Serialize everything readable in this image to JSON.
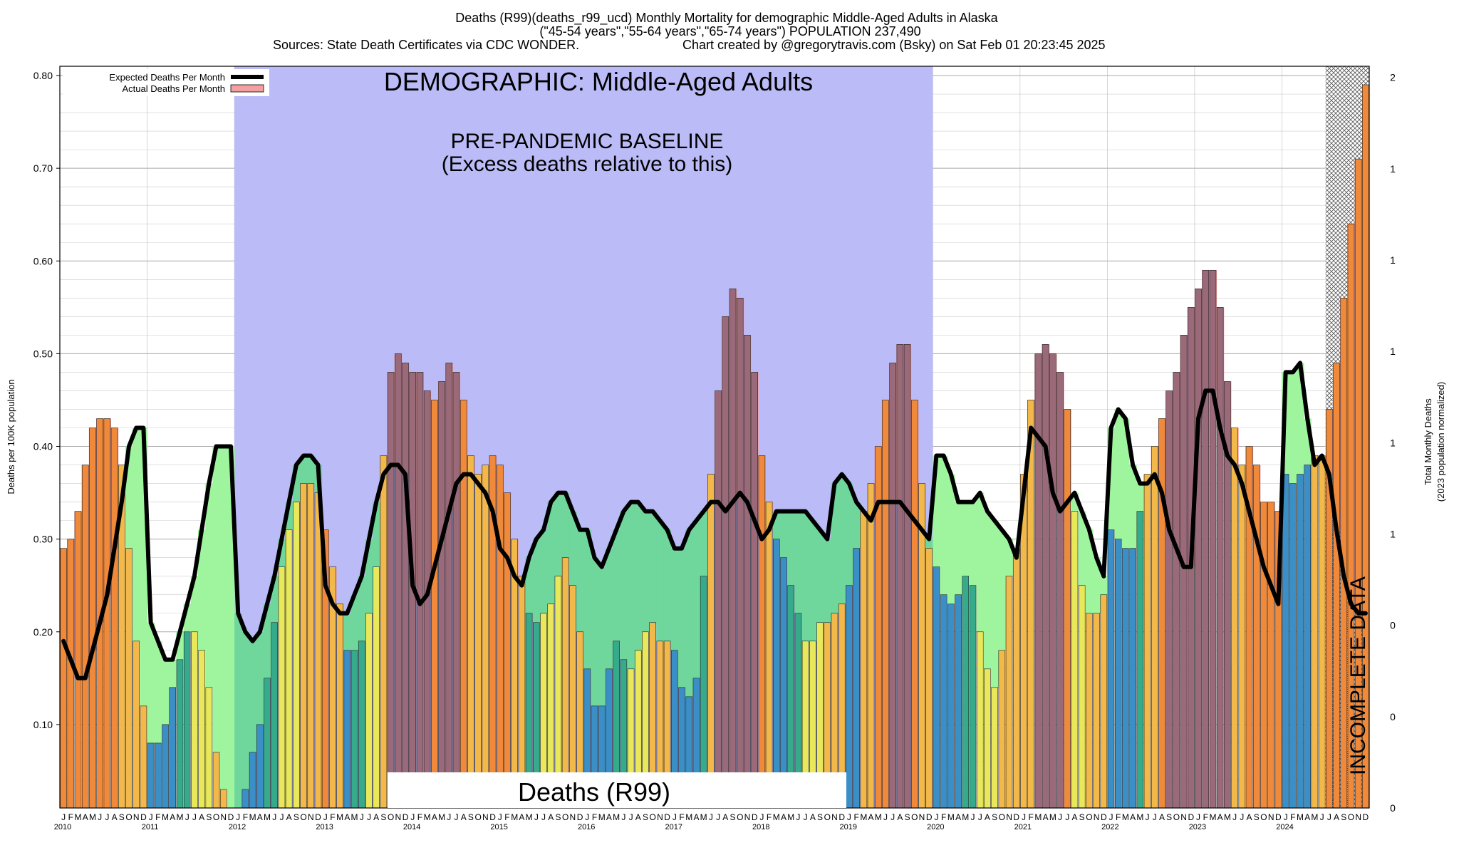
{
  "header": {
    "title_line1": "Deaths (R99)(deaths_r99_ucd) Monthly Mortality for demographic Middle-Aged Adults in Alaska",
    "title_line2": "(\"45-54 years\",\"55-64 years\",\"65-74 years\") POPULATION 237,490",
    "title_line3_left": "Sources: State Death Certificates via CDC WONDER.",
    "title_line3_right": "Chart created by @gregorytravis.com (Bsky) on Sat Feb 01 20:23:45 2025"
  },
  "annotations": {
    "demographic": "DEMOGRAPHIC: Middle-Aged Adults",
    "baseline_1": "PRE-PANDEMIC BASELINE",
    "baseline_2": "(Excess deaths relative to this)",
    "cause_box": "Deaths (R99)",
    "incomplete": "INCOMPLETE DATA"
  },
  "colors": {
    "baseline_shade": "#bbbbf7",
    "expected_line": "#000000",
    "actual_fill": "#f4a0a0",
    "below_expected": "#9ef59e",
    "below_expected_in_baseline": "#6fd69c",
    "above_expected": "#f4a0a0",
    "bar_palette": [
      "#3a8fc7",
      "#3d9ac0",
      "#3aa3a3",
      "#36ab8c",
      "#e8e85a",
      "#f0d060",
      "#f2b84a",
      "#f0a040",
      "#f08a3a",
      "#e87030",
      "#9a6a7a",
      "#7a6a6a"
    ]
  },
  "legend": {
    "expected": "Expected Deaths Per Month",
    "actual": "Actual Deaths Per Month"
  },
  "chart_data": {
    "type": "bar",
    "ylabel_left": "Deaths per 100K population",
    "ylabel_right_1": "Total Monthly Deaths",
    "ylabel_right_2": "(2023 population normalized)",
    "ylim": [
      0.01,
      0.81
    ],
    "y_ticks": [
      0.1,
      0.2,
      0.3,
      0.4,
      0.5,
      0.6,
      0.7,
      0.8
    ],
    "y_tick_labels": [
      "0.10",
      "0.20",
      "0.30",
      "0.40",
      "0.50",
      "0.60",
      "0.70",
      "0.80"
    ],
    "right_tick_labels": [
      "0",
      "0",
      "0",
      "1",
      "1",
      "1",
      "1",
      "1",
      "2"
    ],
    "grid": "horizontal",
    "legend_position": "top-left",
    "month_labels": [
      "J",
      "F",
      "M",
      "A",
      "M",
      "J",
      "J",
      "A",
      "S",
      "O",
      "N",
      "D"
    ],
    "years": [
      "2010",
      "2011",
      "2012",
      "2013",
      "2014",
      "2015",
      "2016",
      "2017",
      "2018",
      "2019",
      "2020",
      "2021",
      "2022",
      "2023",
      "2024"
    ],
    "baseline_period": {
      "start": "2012-01",
      "end": "2019-12"
    },
    "incomplete_period": {
      "start": "2024-07",
      "end": "2024-12"
    },
    "series": [
      {
        "name": "Actual Deaths Per Month",
        "values": [
          0.29,
          0.3,
          0.33,
          0.38,
          0.42,
          0.43,
          0.43,
          0.42,
          0.38,
          0.29,
          0.19,
          0.12,
          0.08,
          0.08,
          0.1,
          0.14,
          0.17,
          0.2,
          0.2,
          0.18,
          0.14,
          0.07,
          0.03,
          0.0,
          0.0,
          0.03,
          0.07,
          0.1,
          0.15,
          0.21,
          0.27,
          0.31,
          0.34,
          0.36,
          0.36,
          0.35,
          0.31,
          0.27,
          0.23,
          0.18,
          0.18,
          0.19,
          0.22,
          0.27,
          0.39,
          0.48,
          0.5,
          0.49,
          0.48,
          0.48,
          0.46,
          0.45,
          0.47,
          0.49,
          0.48,
          0.45,
          0.39,
          0.37,
          0.38,
          0.39,
          0.38,
          0.35,
          0.3,
          0.26,
          0.22,
          0.21,
          0.22,
          0.23,
          0.26,
          0.28,
          0.25,
          0.2,
          0.16,
          0.12,
          0.12,
          0.16,
          0.19,
          0.17,
          0.16,
          0.18,
          0.2,
          0.21,
          0.19,
          0.19,
          0.18,
          0.14,
          0.13,
          0.15,
          0.26,
          0.37,
          0.46,
          0.54,
          0.57,
          0.56,
          0.52,
          0.48,
          0.39,
          0.34,
          0.3,
          0.28,
          0.25,
          0.22,
          0.19,
          0.19,
          0.21,
          0.21,
          0.22,
          0.23,
          0.25,
          0.29,
          0.33,
          0.36,
          0.4,
          0.45,
          0.49,
          0.51,
          0.51,
          0.45,
          0.36,
          0.29,
          0.27,
          0.24,
          0.23,
          0.24,
          0.26,
          0.25,
          0.2,
          0.16,
          0.14,
          0.18,
          0.26,
          0.29,
          0.37,
          0.45,
          0.5,
          0.51,
          0.5,
          0.48,
          0.44,
          0.33,
          0.25,
          0.22,
          0.22,
          0.24,
          0.31,
          0.3,
          0.29,
          0.29,
          0.33,
          0.37,
          0.4,
          0.43,
          0.46,
          0.48,
          0.52,
          0.55,
          0.57,
          0.59,
          0.59,
          0.55,
          0.47,
          0.42,
          0.38,
          0.4,
          0.38,
          0.34,
          0.34,
          0.33,
          0.37,
          0.36,
          0.37,
          0.38,
          0.39,
          0.39,
          0.44,
          0.49,
          0.56,
          0.64,
          0.71,
          0.79
        ]
      },
      {
        "name": "Expected Deaths Per Month",
        "values": [
          0.19,
          0.17,
          0.15,
          0.15,
          0.18,
          0.21,
          0.24,
          0.29,
          0.34,
          0.4,
          0.42,
          0.42,
          0.21,
          0.19,
          0.17,
          0.17,
          0.2,
          0.23,
          0.26,
          0.31,
          0.36,
          0.4,
          0.4,
          0.4,
          0.22,
          0.2,
          0.19,
          0.2,
          0.23,
          0.26,
          0.3,
          0.34,
          0.38,
          0.39,
          0.39,
          0.38,
          0.25,
          0.23,
          0.22,
          0.22,
          0.24,
          0.26,
          0.3,
          0.34,
          0.37,
          0.38,
          0.38,
          0.37,
          0.25,
          0.23,
          0.24,
          0.27,
          0.3,
          0.33,
          0.36,
          0.37,
          0.37,
          0.36,
          0.35,
          0.33,
          0.29,
          0.28,
          0.26,
          0.25,
          0.28,
          0.3,
          0.31,
          0.34,
          0.35,
          0.35,
          0.33,
          0.31,
          0.31,
          0.28,
          0.27,
          0.29,
          0.31,
          0.33,
          0.34,
          0.34,
          0.33,
          0.33,
          0.32,
          0.31,
          0.29,
          0.29,
          0.31,
          0.32,
          0.33,
          0.34,
          0.34,
          0.33,
          0.34,
          0.35,
          0.34,
          0.32,
          0.3,
          0.31,
          0.33,
          0.33,
          0.33,
          0.33,
          0.33,
          0.32,
          0.31,
          0.3,
          0.36,
          0.37,
          0.36,
          0.34,
          0.33,
          0.32,
          0.34,
          0.34,
          0.34,
          0.34,
          0.33,
          0.32,
          0.31,
          0.3,
          0.39,
          0.39,
          0.37,
          0.34,
          0.34,
          0.34,
          0.35,
          0.33,
          0.32,
          0.31,
          0.3,
          0.28,
          0.35,
          0.42,
          0.41,
          0.4,
          0.35,
          0.33,
          0.34,
          0.35,
          0.33,
          0.31,
          0.28,
          0.26,
          0.42,
          0.44,
          0.43,
          0.38,
          0.36,
          0.36,
          0.37,
          0.35,
          0.31,
          0.29,
          0.27,
          0.27,
          0.43,
          0.46,
          0.46,
          0.42,
          0.39,
          0.38,
          0.36,
          0.33,
          0.3,
          0.27,
          0.25,
          0.23,
          0.48,
          0.48,
          0.49,
          0.43,
          0.38,
          0.39,
          0.37,
          0.31,
          0.26,
          0.23,
          0.22,
          0.22
        ]
      }
    ]
  }
}
